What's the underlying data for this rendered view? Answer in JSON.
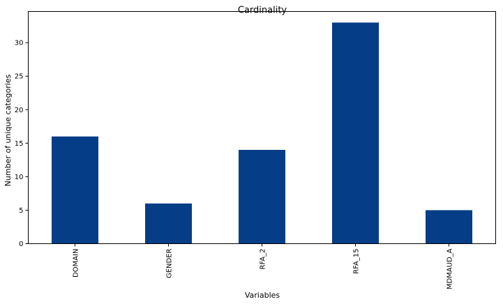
{
  "chart_data": {
    "type": "bar",
    "title": "Cardinality",
    "xlabel": "Variables",
    "ylabel": "Number of unique categories",
    "categories": [
      "DOMAIN",
      "GENDER",
      "RFA_2",
      "RFA_15",
      "MDMAUD_A"
    ],
    "values": [
      16,
      6,
      14,
      33,
      5
    ],
    "ylim": [
      0,
      34.65
    ],
    "yticks": [
      0,
      5,
      10,
      15,
      20,
      25,
      30
    ],
    "bar_color": "#053d87",
    "grid": false,
    "legend": "none"
  }
}
